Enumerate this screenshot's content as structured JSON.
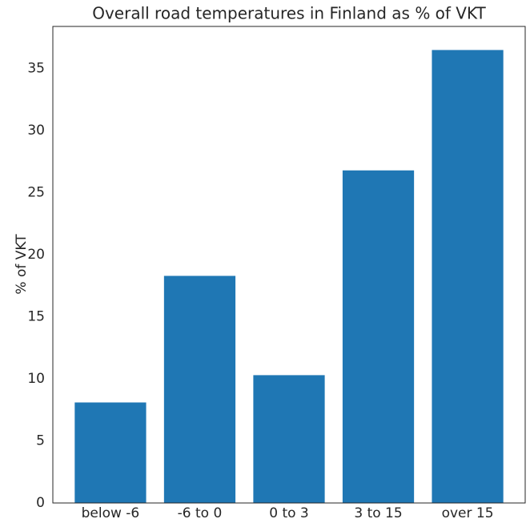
{
  "chart_data": {
    "type": "bar",
    "title": "Overall road temperatures in Finland as % of VKT",
    "ylabel": "% of VKT",
    "categories": [
      "below -6",
      "-6 to 0",
      "0 to 3",
      "3 to 15",
      "over 15"
    ],
    "values": [
      8.1,
      18.3,
      10.3,
      26.8,
      36.5
    ],
    "color": "#1f77b4",
    "ylim": [
      0,
      38.4
    ],
    "yticks": [
      0,
      5,
      10,
      15,
      20,
      25,
      30,
      35
    ],
    "grid": false
  }
}
